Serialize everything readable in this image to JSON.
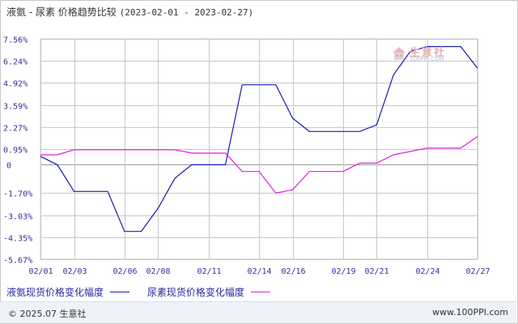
{
  "title": {
    "main": "液氨 - 尿素  价格趋势比较",
    "range": "(2023-02-01 - 2023-02-27)"
  },
  "watermark": {
    "brand": "生意社",
    "url": "100PPI.COM"
  },
  "footer": {
    "copyright": "© 2025.07 生意社",
    "site": "www.100PPI.com"
  },
  "colors": {
    "series1": "#1a1ab4",
    "series2": "#dd22dd",
    "grid": "#c8c8c8",
    "axis_text": "#3030a0"
  },
  "chart_data": {
    "type": "line",
    "title": "液氨 - 尿素  价格趋势比较",
    "xlabel": "",
    "ylabel": "",
    "ylim": [
      -5.67,
      7.56
    ],
    "y_ticks": [
      "7.56%",
      "6.24%",
      "4.92%",
      "3.59%",
      "2.27%",
      "0.95%",
      "0",
      "-1.70%",
      "-3.03%",
      "-4.35%",
      "-5.67%"
    ],
    "y_tick_values": [
      7.56,
      6.24,
      4.92,
      3.59,
      2.27,
      0.95,
      0,
      -1.7,
      -3.03,
      -4.35,
      -5.67
    ],
    "x_ticks": [
      "02/01",
      "02/03",
      "02/06",
      "02/08",
      "02/11",
      "02/14",
      "02/16",
      "02/19",
      "02/21",
      "02/24",
      "02/27"
    ],
    "x": [
      "02/01",
      "02/02",
      "02/03",
      "02/04",
      "02/05",
      "02/06",
      "02/07",
      "02/08",
      "02/09",
      "02/10",
      "02/11",
      "02/12",
      "02/13",
      "02/14",
      "02/15",
      "02/16",
      "02/17",
      "02/18",
      "02/19",
      "02/20",
      "02/21",
      "02/22",
      "02/23",
      "02/24",
      "02/25",
      "02/26",
      "02/27"
    ],
    "grid": true,
    "legend_position": "bottom-left",
    "series": [
      {
        "name": "液氨现货价格变化幅度",
        "values": [
          0.5,
          0.0,
          -1.6,
          -1.6,
          -1.6,
          -4.0,
          -4.0,
          -2.6,
          -0.8,
          0.0,
          0.0,
          0.0,
          4.8,
          4.8,
          4.8,
          2.8,
          2.0,
          2.0,
          2.0,
          2.0,
          2.4,
          5.4,
          6.8,
          7.1,
          7.1,
          7.1,
          5.8
        ]
      },
      {
        "name": "尿素现货价格变化幅度",
        "values": [
          0.6,
          0.6,
          0.9,
          0.9,
          0.9,
          0.9,
          0.9,
          0.9,
          0.9,
          0.7,
          0.7,
          0.7,
          -0.4,
          -0.4,
          -1.7,
          -1.5,
          -0.4,
          -0.4,
          -0.4,
          0.1,
          0.1,
          0.6,
          0.8,
          1.0,
          1.0,
          1.0,
          1.7
        ]
      }
    ]
  }
}
